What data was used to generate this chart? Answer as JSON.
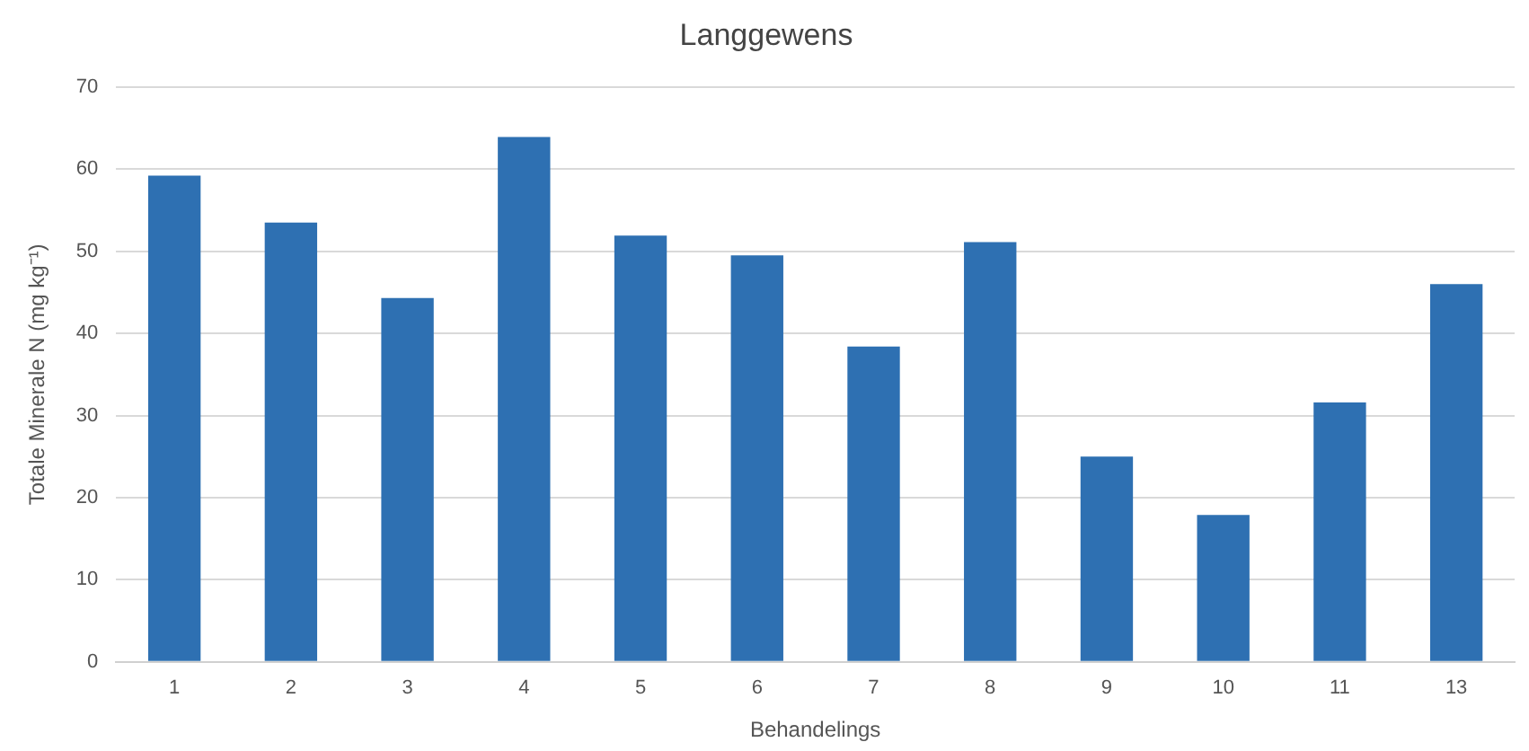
{
  "chart_data": {
    "type": "bar",
    "title": "Langgewens",
    "xlabel": "Behandelings",
    "ylabel": "Totale Minerale N (mg kg⁻¹)",
    "categories": [
      "1",
      "2",
      "3",
      "4",
      "5",
      "6",
      "7",
      "8",
      "9",
      "10",
      "11",
      "13"
    ],
    "values": [
      59.2,
      53.5,
      44.3,
      63.9,
      51.9,
      49.5,
      38.4,
      51.1,
      25.0,
      17.9,
      31.6,
      46.0
    ],
    "color": "#2e70b2",
    "ylim": [
      0,
      70
    ],
    "yticks": [
      0,
      10,
      20,
      30,
      40,
      50,
      60,
      70
    ],
    "grid": "y",
    "legend": false
  }
}
